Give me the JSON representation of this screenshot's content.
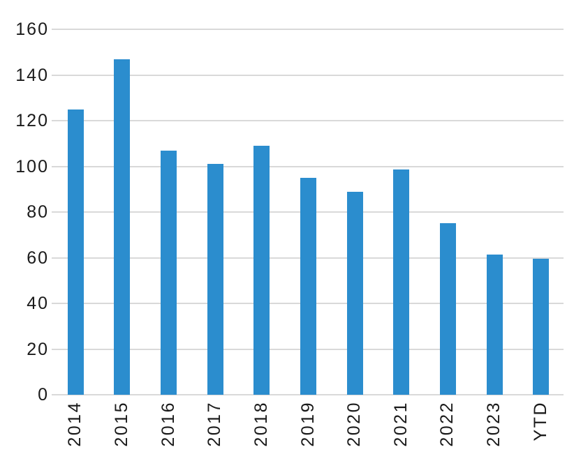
{
  "chart_data": {
    "type": "bar",
    "title": "",
    "xlabel": "",
    "ylabel": "",
    "categories": [
      "2014",
      "2015",
      "2016",
      "2017",
      "2018",
      "2019",
      "2020",
      "2021",
      "2022",
      "2023",
      "YTD"
    ],
    "values": [
      125,
      147,
      107,
      101,
      109,
      95,
      89,
      98.5,
      75,
      61.5,
      59.5
    ],
    "ylim": [
      0,
      160
    ],
    "ytick_step": 20,
    "ytick_labels": [
      "0",
      "20",
      "40",
      "60",
      "80",
      "100",
      "120",
      "140",
      "160"
    ],
    "grid": true,
    "legend": "none",
    "bar_color": "#2b8dce",
    "gridline_color": "#d9d9d9",
    "text_color": "#1a1a1a",
    "background_color": "#ffffff"
  }
}
